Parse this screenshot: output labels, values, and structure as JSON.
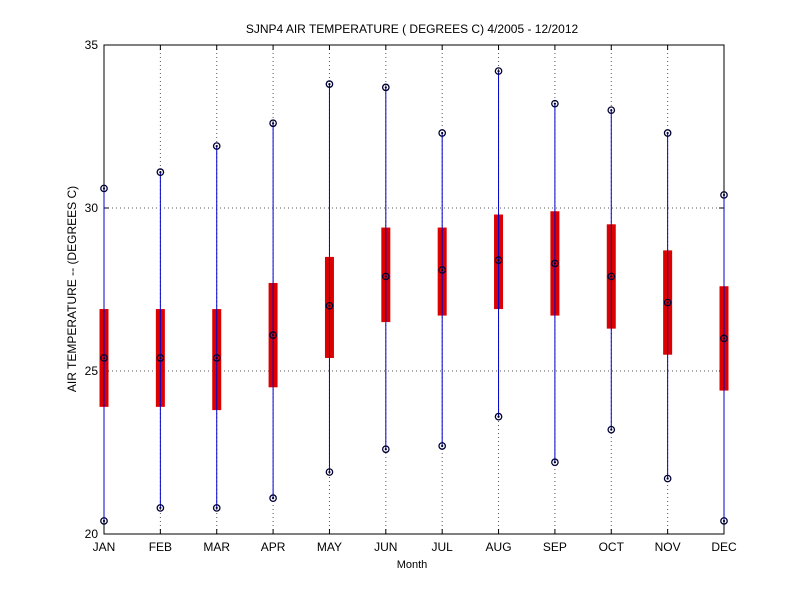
{
  "chart_data": {
    "type": "box",
    "title": "SJNP4  AIR TEMPERATURE ( DEGREES C) 4/2005 - 12/2012",
    "xlabel": "Month",
    "ylabel": "AIR TEMPERATURE -- (DEGREES C)",
    "categories": [
      "JAN",
      "FEB",
      "MAR",
      "APR",
      "MAY",
      "JUN",
      "JUL",
      "AUG",
      "SEP",
      "OCT",
      "NOV",
      "DEC"
    ],
    "ylim": [
      20,
      35
    ],
    "yticks": [
      20,
      25,
      30,
      35
    ],
    "grid": true,
    "series": [
      {
        "min": [
          20.4,
          20.8,
          20.8,
          21.1,
          21.9,
          22.6,
          22.7,
          23.6,
          22.2,
          23.2,
          21.7,
          20.4
        ],
        "q1": [
          23.9,
          23.9,
          23.8,
          24.5,
          25.4,
          26.5,
          26.7,
          26.9,
          26.7,
          26.3,
          25.5,
          24.4
        ],
        "median": [
          25.4,
          25.4,
          25.4,
          26.1,
          27.0,
          27.9,
          28.1,
          28.4,
          28.3,
          27.9,
          27.1,
          26.0
        ],
        "q3": [
          26.9,
          26.9,
          26.9,
          27.7,
          28.5,
          29.4,
          29.4,
          29.8,
          29.9,
          29.5,
          28.7,
          27.6
        ],
        "max": [
          30.6,
          31.1,
          31.9,
          32.6,
          33.8,
          33.7,
          32.3,
          34.2,
          33.2,
          33.0,
          32.3,
          30.4
        ]
      }
    ],
    "colors": {
      "whisker": "#0000cc",
      "box": "#dd0000",
      "marker": "#000033",
      "grid": "#555555",
      "axis": "#000000"
    }
  }
}
